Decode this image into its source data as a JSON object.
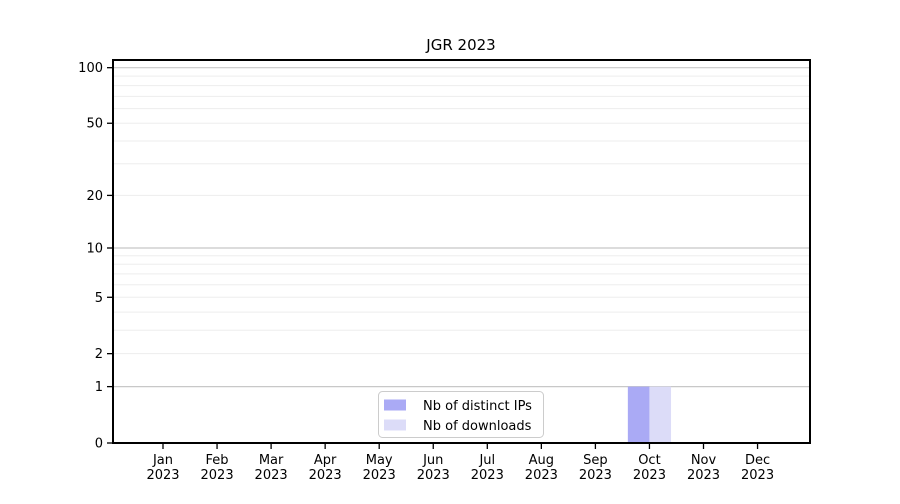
{
  "chart_data": {
    "type": "bar",
    "title": "JGR 2023",
    "categories": [
      "Jan",
      "Feb",
      "Mar",
      "Apr",
      "May",
      "Jun",
      "Jul",
      "Aug",
      "Sep",
      "Oct",
      "Nov",
      "Dec"
    ],
    "year": "2023",
    "series": [
      {
        "name": "Nb of distinct IPs",
        "color": "#aaaaf5",
        "values": [
          0,
          0,
          0,
          0,
          0,
          0,
          0,
          0,
          0,
          1,
          0,
          0
        ]
      },
      {
        "name": "Nb of downloads",
        "color": "#dcdcf8",
        "values": [
          0,
          0,
          0,
          0,
          0,
          0,
          0,
          0,
          0,
          1,
          0,
          0
        ]
      }
    ],
    "y_scale": "log1p",
    "y_max": 110,
    "y_ticks": [
      0,
      1,
      2,
      5,
      10,
      20,
      50,
      100
    ],
    "y_major_gridlines": [
      1,
      10,
      100
    ],
    "y_minor_gridlines": [
      2,
      3,
      4,
      5,
      6,
      7,
      8,
      9,
      20,
      30,
      40,
      50,
      60,
      70,
      80,
      90
    ],
    "grid_on": true,
    "legend_position": "bottom-center",
    "colors": {
      "axis": "#000000",
      "grid_major": "#c8c8c8",
      "grid_minor": "#ededed",
      "legend_border": "#cccccc",
      "background": "#ffffff"
    }
  }
}
